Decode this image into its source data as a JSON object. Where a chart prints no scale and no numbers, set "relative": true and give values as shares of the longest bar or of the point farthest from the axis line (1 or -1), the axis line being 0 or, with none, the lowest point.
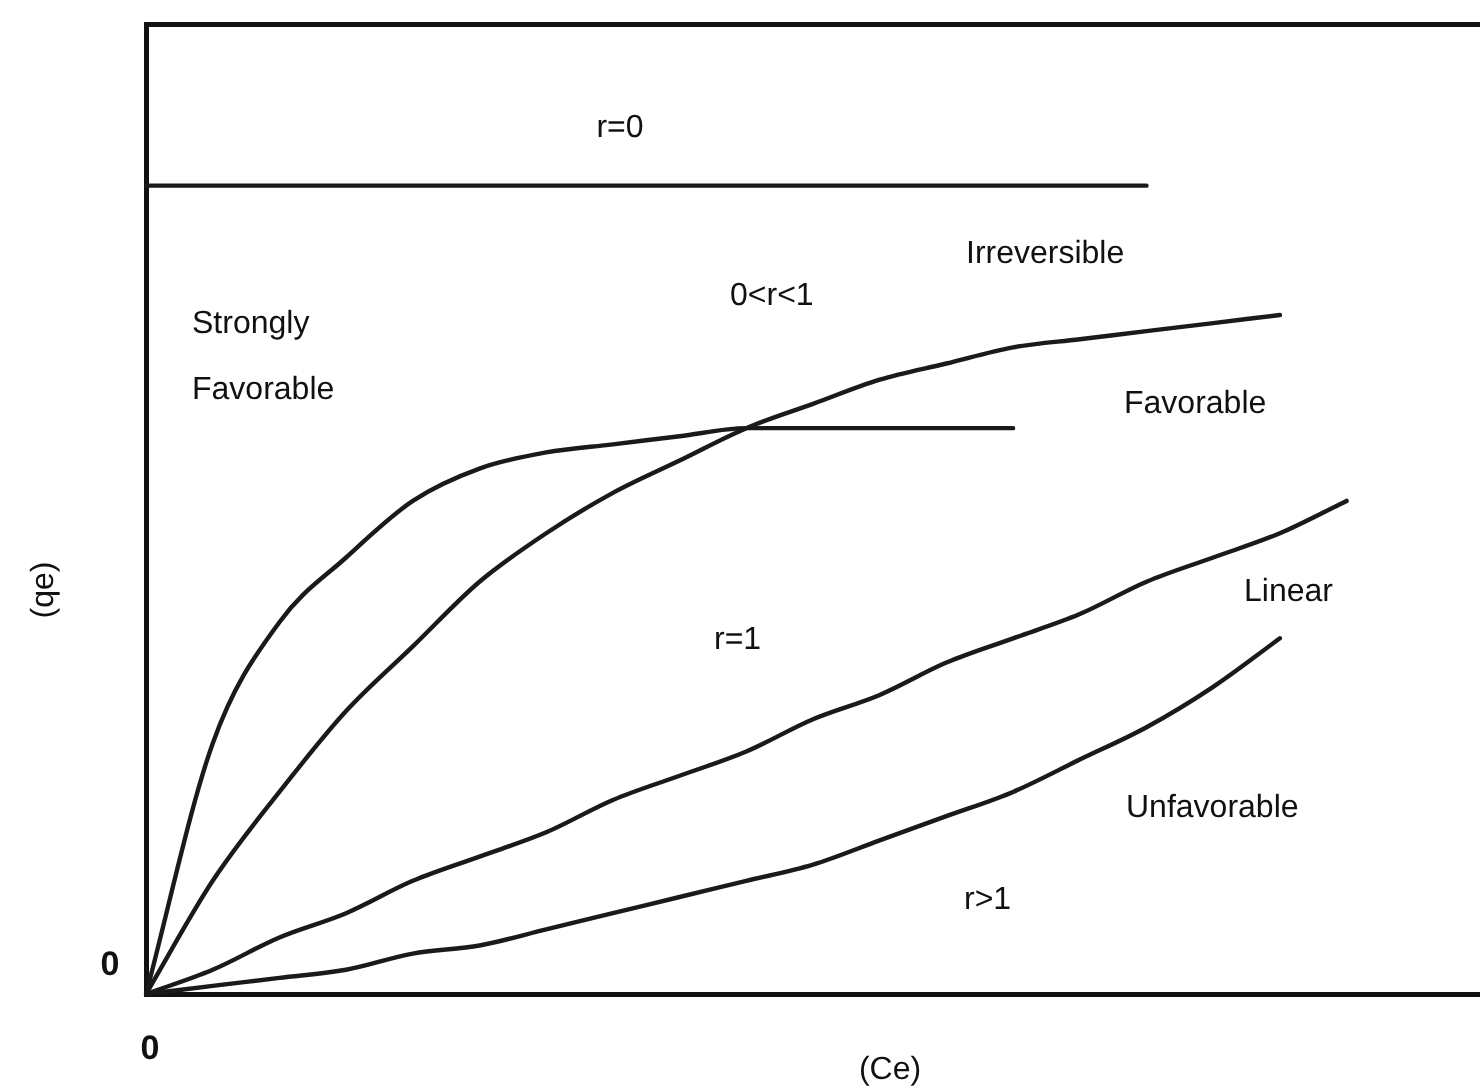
{
  "chart_data": {
    "type": "line",
    "relative": true,
    "xlabel": "(Ce)",
    "ylabel": "(qe)",
    "marker": "none",
    "line_style": "solid",
    "categories": [
      null,
      null,
      null,
      null,
      null,
      null,
      null,
      null,
      null,
      null,
      null,
      null,
      null,
      null,
      null,
      null,
      null,
      null,
      null,
      null,
      null
    ],
    "series": [
      {
        "color": "#1a1a1a",
        "values": [
          1,
          1,
          1,
          1,
          1,
          1,
          1,
          1,
          1,
          1,
          1,
          1,
          1,
          1,
          1,
          1,
          null,
          null,
          null,
          null,
          null
        ]
      },
      {
        "color": "#1a1a1a",
        "values": [
          0,
          0.31,
          0.46,
          0.54,
          0.61,
          0.65,
          0.67,
          0.68,
          0.69,
          0.7,
          0.7,
          0.7,
          0.7,
          0.7,
          null,
          null,
          null,
          null,
          null,
          null,
          null
        ]
      },
      {
        "color": "#1a1a1a",
        "values": [
          0,
          0.14,
          0.25,
          0.35,
          0.43,
          0.51,
          0.57,
          0.62,
          0.66,
          0.7,
          0.73,
          0.76,
          0.78,
          0.8,
          0.81,
          0.82,
          0.83,
          0.84,
          null,
          null,
          null
        ]
      },
      {
        "color": "#1a1a1a",
        "values": [
          0,
          0.03,
          0.07,
          0.1,
          0.14,
          0.17,
          0.2,
          0.24,
          0.27,
          0.3,
          0.34,
          0.37,
          0.41,
          0.44,
          0.47,
          0.51,
          0.54,
          0.57,
          0.61,
          null,
          null
        ]
      },
      {
        "color": "#1a1a1a",
        "values": [
          0,
          0.01,
          0.02,
          0.03,
          0.05,
          0.06,
          0.08,
          0.1,
          0.12,
          0.14,
          0.16,
          0.19,
          0.22,
          0.25,
          0.29,
          0.33,
          0.38,
          0.44,
          null,
          null,
          null
        ]
      }
    ],
    "annotations": [
      "r=0",
      "Strongly Favorable",
      "0<r<1",
      "Irreversible",
      "Favorable",
      "r=1",
      "Linear",
      "Unfavorable",
      "r>1",
      "0",
      "0"
    ]
  }
}
